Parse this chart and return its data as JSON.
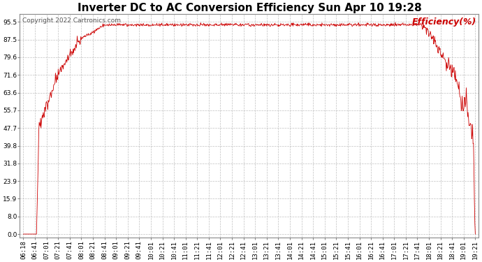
{
  "title": "Inverter DC to AC Conversion Efficiency Sun Apr 10 19:28",
  "copyright": "Copyright 2022 Cartronics.com",
  "legend_label": "Efficiency(%)",
  "line_color": "#cc0000",
  "background_color": "#ffffff",
  "grid_color": "#b0b0b0",
  "yticks": [
    0.0,
    8.0,
    15.9,
    23.9,
    31.8,
    39.8,
    47.7,
    55.7,
    63.6,
    71.6,
    79.6,
    87.5,
    95.5
  ],
  "ylim": [
    -1.5,
    99
  ],
  "xtick_labels": [
    "06:18",
    "06:41",
    "07:01",
    "07:21",
    "07:41",
    "08:01",
    "08:21",
    "08:41",
    "09:01",
    "09:21",
    "09:41",
    "10:01",
    "10:21",
    "10:41",
    "11:01",
    "11:21",
    "11:41",
    "12:01",
    "12:21",
    "12:41",
    "13:01",
    "13:21",
    "13:41",
    "14:01",
    "14:21",
    "14:41",
    "15:01",
    "15:21",
    "15:41",
    "16:01",
    "16:21",
    "16:41",
    "17:01",
    "17:21",
    "17:41",
    "18:01",
    "18:21",
    "18:41",
    "19:01",
    "19:21"
  ],
  "title_fontsize": 11,
  "copyright_fontsize": 6.5,
  "legend_fontsize": 9,
  "tick_fontsize": 6.5
}
